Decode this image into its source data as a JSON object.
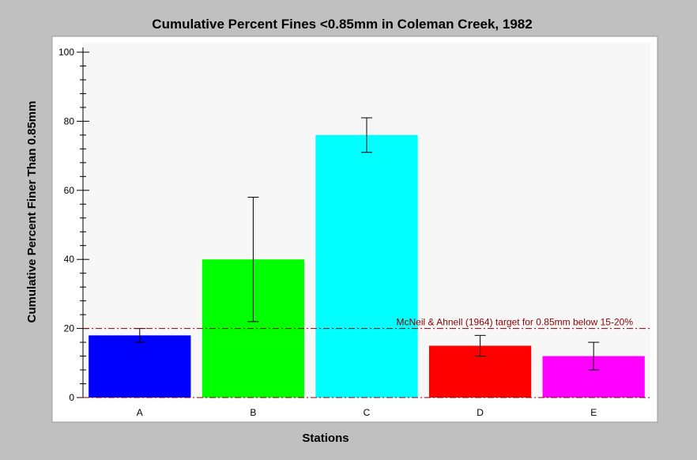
{
  "chart_data": {
    "type": "bar",
    "title": "Cumulative Percent Fines <0.85mm in Coleman Creek, 1982",
    "xlabel": "Stations",
    "ylabel": "Cumulative Percent Finer Than 0.85mm",
    "ylim": [
      0,
      100
    ],
    "yticks": [
      0,
      20,
      40,
      60,
      80,
      100
    ],
    "categories": [
      "A",
      "B",
      "C",
      "D",
      "E"
    ],
    "values": [
      18,
      40,
      76,
      15,
      12
    ],
    "error_low": [
      16,
      22,
      71,
      12,
      8
    ],
    "error_high": [
      20,
      58,
      81,
      18,
      16
    ],
    "colors": [
      "#0000ff",
      "#00ff00",
      "#00ffff",
      "#ff0000",
      "#ff00ff"
    ],
    "reference_line": {
      "value": 20,
      "label": "McNeil & Ahnell (1964) target for 0.85mm below 15-20%",
      "color": "#8b0000",
      "style": "dash-dot"
    },
    "grid": false,
    "legend": "none"
  }
}
